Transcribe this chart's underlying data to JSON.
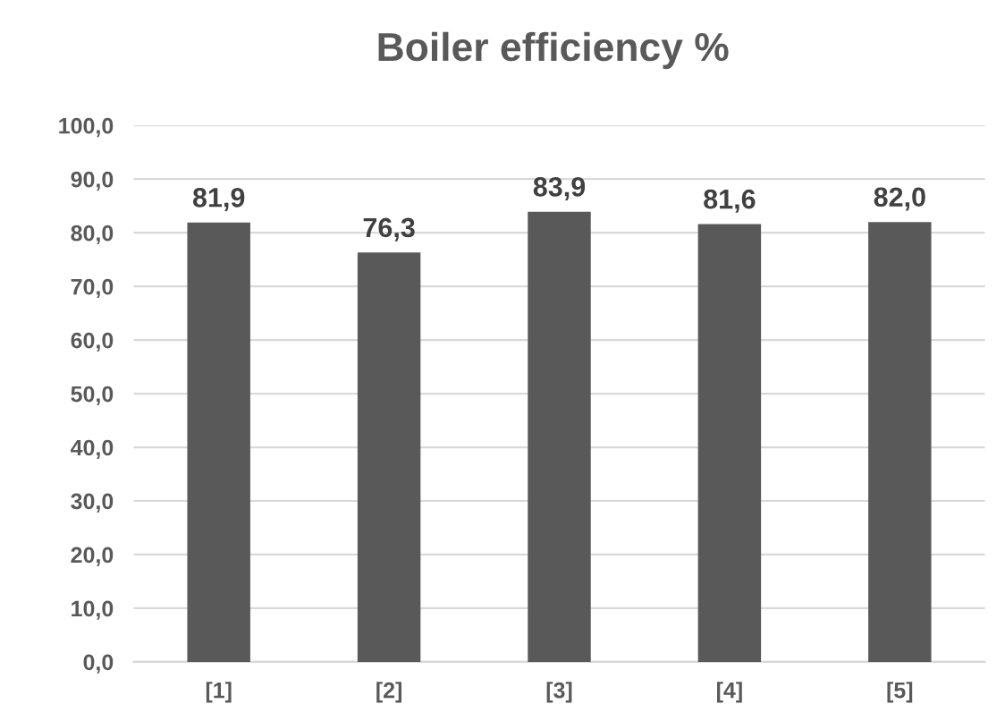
{
  "chart_data": {
    "type": "bar",
    "title": "Boiler efficiency %",
    "categories": [
      "[1]",
      "[2]",
      "[3]",
      "[4]",
      "[5]"
    ],
    "values": [
      81.9,
      76.3,
      83.9,
      81.6,
      82.0
    ],
    "value_labels": [
      "81,9",
      "76,3",
      "83,9",
      "81,6",
      "82,0"
    ],
    "color": "#595959",
    "ylim": [
      0,
      100
    ],
    "yticks": [
      {
        "value": 0,
        "label": "0,0"
      },
      {
        "value": 10,
        "label": "10,0"
      },
      {
        "value": 20,
        "label": "20,0"
      },
      {
        "value": 30,
        "label": "30,0"
      },
      {
        "value": 40,
        "label": "40,0"
      },
      {
        "value": 50,
        "label": "50,0"
      },
      {
        "value": 60,
        "label": "60,0"
      },
      {
        "value": 70,
        "label": "70,0"
      },
      {
        "value": 80,
        "label": "80,0"
      },
      {
        "value": 90,
        "label": "90,0"
      },
      {
        "value": 100,
        "label": "100,0"
      }
    ],
    "grid": "y"
  }
}
